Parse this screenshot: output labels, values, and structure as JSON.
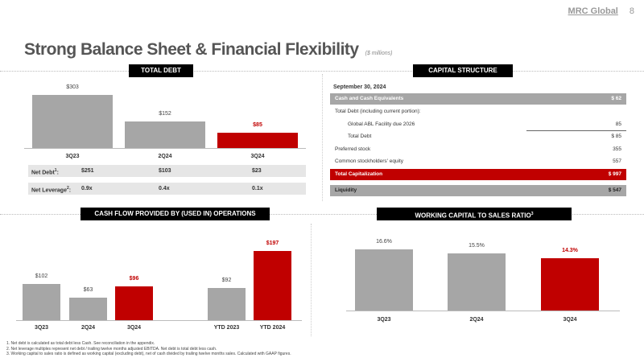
{
  "header": {
    "logo": "MRC Global",
    "page": "8",
    "title": "Strong Balance Sheet & Financial Flexibility",
    "subtitle": "($ millions)"
  },
  "total_debt": {
    "header": "TOTAL DEBT",
    "categories": [
      "3Q23",
      "2Q24",
      "3Q24"
    ],
    "values": [
      303,
      152,
      85
    ],
    "labels": [
      "$303",
      "$152",
      "$85"
    ],
    "highlight": [
      false,
      false,
      true
    ],
    "net_debt": {
      "label": "Net Debt",
      "sup": "1",
      "values": [
        "$251",
        "$103",
        "$23"
      ]
    },
    "net_leverage": {
      "label": "Net Leverage",
      "sup": "2",
      "values": [
        "0.9x",
        "0.4x",
        "0.1x"
      ]
    }
  },
  "capital_structure": {
    "header": "CAPITAL STRUCTURE",
    "date": "September 30, 2024",
    "rows": [
      {
        "label": "Cash and Cash Equivalents",
        "value": "$ 62",
        "style": "gray"
      },
      {
        "label": "Total Debt (including current portion):",
        "value": "",
        "style": ""
      },
      {
        "label": "Global ABL Facility due 2026",
        "value": "85",
        "style": "ind"
      },
      {
        "label": "Total Debt",
        "value": "$ 85",
        "style": "ind"
      },
      {
        "label": "Preferred stock",
        "value": "355",
        "style": ""
      },
      {
        "label": "Common stockholders' equity",
        "value": "557",
        "style": ""
      },
      {
        "label": "Total Capitalization",
        "value": "$ 997",
        "style": "red"
      },
      {
        "label": "Liquidity",
        "value": "$ 547",
        "style": "liq"
      }
    ]
  },
  "cash_flow": {
    "header": "CASH FLOW PROVIDED BY (USED IN) OPERATIONS",
    "categories": [
      "3Q23",
      "2Q24",
      "3Q24",
      "YTD 2023",
      "YTD 2024"
    ],
    "values": [
      102,
      63,
      96,
      92,
      197
    ],
    "labels": [
      "$102",
      "$63",
      "$96",
      "$92",
      "$197"
    ],
    "highlight": [
      false,
      false,
      true,
      false,
      true
    ]
  },
  "working_capital": {
    "header": "WORKING CAPITAL TO SALES RATIO",
    "sup": "3",
    "categories": [
      "3Q23",
      "2Q24",
      "3Q24"
    ],
    "values": [
      16.6,
      15.5,
      14.3
    ],
    "labels": [
      "16.6%",
      "15.5%",
      "14.3%"
    ],
    "highlight": [
      false,
      false,
      true
    ]
  },
  "footnotes": [
    "1.   Net debt is calculated as total debt less Cash. See reconciliation in the appendix.",
    "2.   Net leverage multiples represent net debt / trailing twelve months adjusted EBITDA. Net debt is total debt less cash.",
    "3.   Working capital to sales ratio is defined as working capital (excluding debt), net of cash divided by trailing twelve months sales. Calculated with GAAP figures."
  ],
  "colors": {
    "accent": "#c00000",
    "gray": "#a6a6a6"
  }
}
